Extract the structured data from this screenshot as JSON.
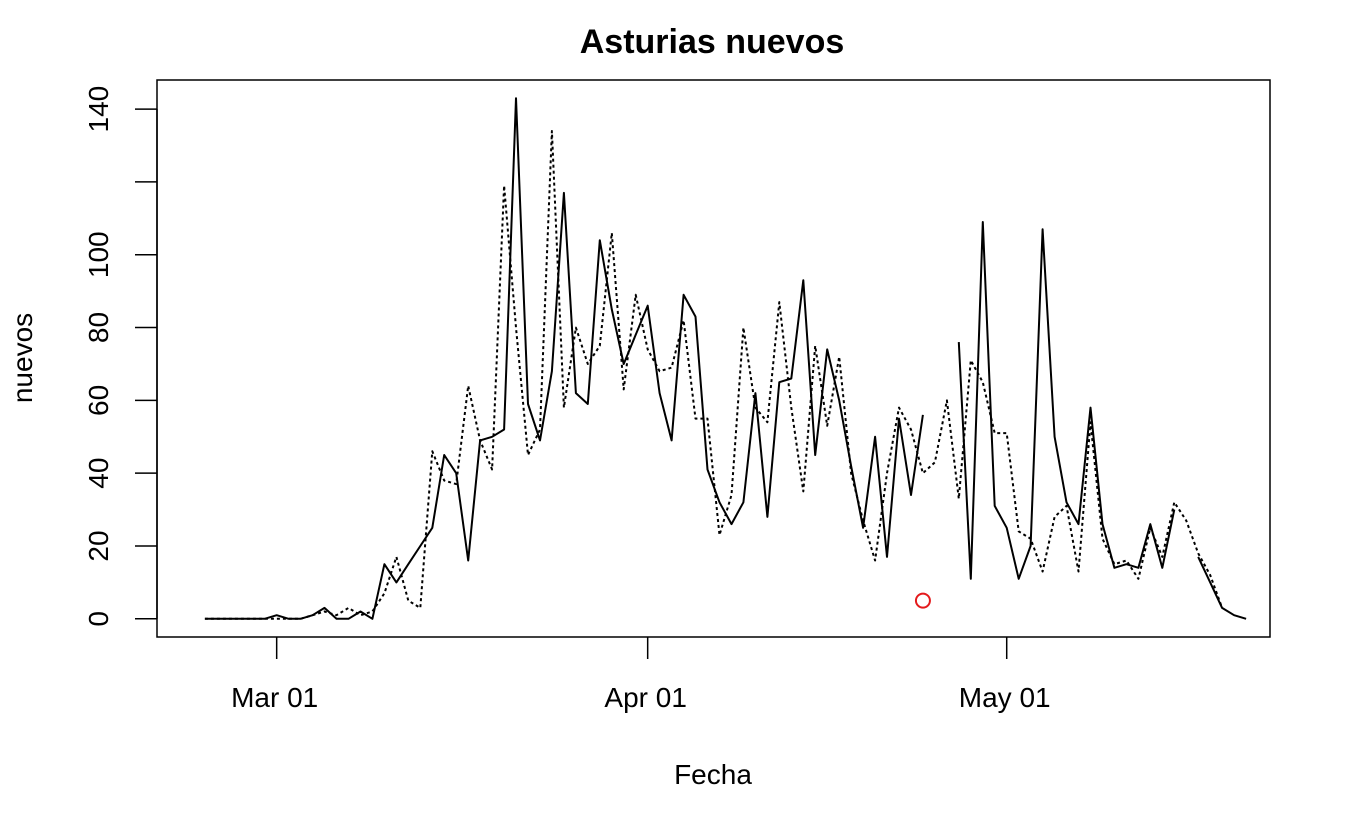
{
  "chart_data": {
    "type": "line",
    "title": "Asturias nuevos",
    "xlabel": "Fecha",
    "ylabel": "nuevos",
    "x_ticks": [
      {
        "date": "2020-03-01",
        "label": "Mar 01"
      },
      {
        "date": "2020-04-01",
        "label": "Apr 01"
      },
      {
        "date": "2020-05-01",
        "label": "May 01"
      }
    ],
    "y_ticks": [
      0,
      20,
      40,
      60,
      80,
      100,
      120,
      140
    ],
    "y_tick_labels": [
      "0",
      "20",
      "40",
      "60",
      "80",
      "100",
      "",
      "140"
    ],
    "xlim": [
      "2020-02-20",
      "2020-05-23"
    ],
    "ylim": [
      -5,
      148
    ],
    "grid": false,
    "series": [
      {
        "style": "solid",
        "color": "#000000",
        "points": [
          [
            "2020-02-24",
            0
          ],
          [
            "2020-02-25",
            0
          ],
          [
            "2020-02-26",
            0
          ],
          [
            "2020-02-27",
            0
          ],
          [
            "2020-02-28",
            0
          ],
          [
            "2020-02-29",
            0
          ],
          [
            "2020-03-01",
            1
          ],
          [
            "2020-03-02",
            0
          ],
          [
            "2020-03-03",
            0
          ],
          [
            "2020-03-04",
            1
          ],
          [
            "2020-03-05",
            3
          ],
          [
            "2020-03-06",
            0
          ],
          [
            "2020-03-07",
            0
          ],
          [
            "2020-03-08",
            2
          ],
          [
            "2020-03-09",
            0
          ],
          [
            "2020-03-10",
            15
          ],
          [
            "2020-03-11",
            10
          ],
          [
            "2020-03-12",
            15
          ],
          [
            "2020-03-13",
            20
          ],
          [
            "2020-03-14",
            25
          ],
          [
            "2020-03-15",
            45
          ],
          [
            "2020-03-16",
            40
          ],
          [
            "2020-03-17",
            16
          ],
          [
            "2020-03-18",
            49
          ],
          [
            "2020-03-19",
            50
          ],
          [
            "2020-03-20",
            52
          ],
          [
            "2020-03-21",
            143
          ],
          [
            "2020-03-22",
            59
          ],
          [
            "2020-03-23",
            49
          ],
          [
            "2020-03-24",
            68
          ],
          [
            "2020-03-25",
            117
          ],
          [
            "2020-03-26",
            62
          ],
          [
            "2020-03-27",
            59
          ],
          [
            "2020-03-28",
            104
          ],
          [
            "2020-03-29",
            85
          ],
          [
            "2020-03-30",
            70
          ],
          [
            "2020-03-31",
            78
          ],
          [
            "2020-04-01",
            86
          ],
          [
            "2020-04-02",
            62
          ],
          [
            "2020-04-03",
            49
          ],
          [
            "2020-04-04",
            89
          ],
          [
            "2020-04-05",
            83
          ],
          [
            "2020-04-06",
            41
          ],
          [
            "2020-04-07",
            32
          ],
          [
            "2020-04-08",
            26
          ],
          [
            "2020-04-09",
            32
          ],
          [
            "2020-04-10",
            62
          ],
          [
            "2020-04-11",
            28
          ],
          [
            "2020-04-12",
            65
          ],
          [
            "2020-04-13",
            66
          ],
          [
            "2020-04-14",
            93
          ],
          [
            "2020-04-15",
            45
          ],
          [
            "2020-04-16",
            74
          ],
          [
            "2020-04-17",
            60
          ],
          [
            "2020-04-18",
            42
          ],
          [
            "2020-04-19",
            25
          ],
          [
            "2020-04-20",
            50
          ],
          [
            "2020-04-21",
            17
          ],
          [
            "2020-04-22",
            55
          ],
          [
            "2020-04-23",
            34
          ],
          [
            "2020-04-24",
            56
          ],
          null,
          null,
          [
            "2020-04-27",
            76
          ],
          [
            "2020-04-28",
            11
          ],
          [
            "2020-04-29",
            109
          ],
          [
            "2020-04-30",
            31
          ],
          [
            "2020-05-01",
            25
          ],
          [
            "2020-05-02",
            11
          ],
          [
            "2020-05-03",
            20
          ],
          [
            "2020-05-04",
            107
          ],
          [
            "2020-05-05",
            50
          ],
          [
            "2020-05-06",
            32
          ],
          [
            "2020-05-07",
            26
          ],
          [
            "2020-05-08",
            58
          ],
          [
            "2020-05-09",
            26
          ],
          [
            "2020-05-10",
            14
          ],
          [
            "2020-05-11",
            15
          ],
          [
            "2020-05-12",
            14
          ],
          [
            "2020-05-13",
            26
          ],
          [
            "2020-05-14",
            14
          ],
          [
            "2020-05-15",
            30
          ],
          null,
          [
            "2020-05-17",
            17
          ],
          [
            "2020-05-18",
            10
          ],
          [
            "2020-05-19",
            3
          ],
          [
            "2020-05-20",
            1
          ],
          [
            "2020-05-21",
            0
          ]
        ]
      },
      {
        "style": "dotted",
        "color": "#000000",
        "points": [
          [
            "2020-02-24",
            0
          ],
          [
            "2020-02-25",
            0
          ],
          [
            "2020-02-26",
            0
          ],
          [
            "2020-02-27",
            0
          ],
          [
            "2020-02-28",
            0
          ],
          [
            "2020-02-29",
            0
          ],
          [
            "2020-03-01",
            0
          ],
          [
            "2020-03-02",
            0
          ],
          [
            "2020-03-03",
            0
          ],
          [
            "2020-03-04",
            1
          ],
          [
            "2020-03-05",
            2
          ],
          [
            "2020-03-06",
            1
          ],
          [
            "2020-03-07",
            3
          ],
          [
            "2020-03-08",
            1
          ],
          [
            "2020-03-09",
            2
          ],
          [
            "2020-03-10",
            7
          ],
          [
            "2020-03-11",
            17
          ],
          [
            "2020-03-12",
            5
          ],
          [
            "2020-03-13",
            3
          ],
          [
            "2020-03-14",
            46
          ],
          [
            "2020-03-15",
            38
          ],
          [
            "2020-03-16",
            37
          ],
          [
            "2020-03-17",
            64
          ],
          [
            "2020-03-18",
            49
          ],
          [
            "2020-03-19",
            41
          ],
          [
            "2020-03-20",
            119
          ],
          [
            "2020-03-21",
            80
          ],
          [
            "2020-03-22",
            45
          ],
          [
            "2020-03-23",
            52
          ],
          [
            "2020-03-24",
            134
          ],
          [
            "2020-03-25",
            58
          ],
          [
            "2020-03-26",
            80
          ],
          [
            "2020-03-27",
            70
          ],
          [
            "2020-03-28",
            75
          ],
          [
            "2020-03-29",
            106
          ],
          [
            "2020-03-30",
            63
          ],
          [
            "2020-03-31",
            89
          ],
          [
            "2020-04-01",
            74
          ],
          [
            "2020-04-02",
            68
          ],
          [
            "2020-04-03",
            69
          ],
          [
            "2020-04-04",
            82
          ],
          [
            "2020-04-05",
            55
          ],
          [
            "2020-04-06",
            55
          ],
          [
            "2020-04-07",
            23
          ],
          [
            "2020-04-08",
            34
          ],
          [
            "2020-04-09",
            80
          ],
          [
            "2020-04-10",
            58
          ],
          [
            "2020-04-11",
            54
          ],
          [
            "2020-04-12",
            87
          ],
          [
            "2020-04-13",
            58
          ],
          [
            "2020-04-14",
            35
          ],
          [
            "2020-04-15",
            75
          ],
          [
            "2020-04-16",
            53
          ],
          [
            "2020-04-17",
            72
          ],
          [
            "2020-04-18",
            40
          ],
          [
            "2020-04-19",
            27
          ],
          [
            "2020-04-20",
            16
          ],
          [
            "2020-04-21",
            40
          ],
          [
            "2020-04-22",
            58
          ],
          [
            "2020-04-23",
            52
          ],
          [
            "2020-04-24",
            40
          ],
          [
            "2020-04-25",
            43
          ],
          [
            "2020-04-26",
            60
          ],
          [
            "2020-04-27",
            33
          ],
          [
            "2020-04-28",
            71
          ],
          [
            "2020-04-29",
            65
          ],
          [
            "2020-04-30",
            51
          ],
          [
            "2020-05-01",
            51
          ],
          [
            "2020-05-02",
            24
          ],
          [
            "2020-05-03",
            22
          ],
          [
            "2020-05-04",
            13
          ],
          [
            "2020-05-05",
            28
          ],
          [
            "2020-05-06",
            31
          ],
          [
            "2020-05-07",
            13
          ],
          [
            "2020-05-08",
            54
          ],
          [
            "2020-05-09",
            22
          ],
          [
            "2020-05-10",
            15
          ],
          [
            "2020-05-11",
            16
          ],
          [
            "2020-05-12",
            11
          ],
          [
            "2020-05-13",
            25
          ],
          [
            "2020-05-14",
            17
          ],
          [
            "2020-05-15",
            32
          ],
          [
            "2020-05-16",
            27
          ],
          [
            "2020-05-17",
            18
          ],
          [
            "2020-05-18",
            12
          ],
          [
            "2020-05-19",
            3
          ]
        ]
      }
    ],
    "markers": [
      {
        "date": "2020-04-24",
        "value": 5,
        "shape": "open-circle",
        "color": "#e41a1c"
      }
    ]
  }
}
